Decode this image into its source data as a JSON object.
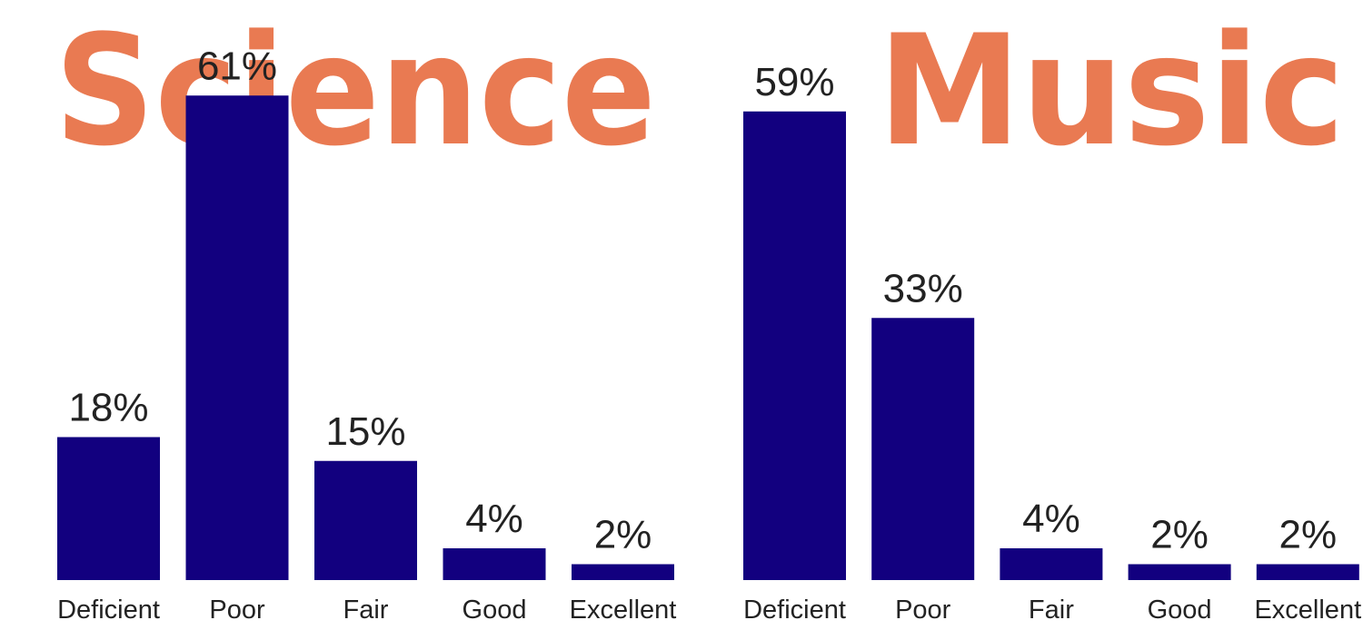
{
  "colors": {
    "bar": "#12007f",
    "title": "#e97a52",
    "text": "#222222",
    "background": "#ffffff"
  },
  "chart_data": [
    {
      "type": "bar",
      "title": "Science",
      "categories": [
        "Deficient",
        "Poor",
        "Fair",
        "Good",
        "Excellent"
      ],
      "values": [
        18,
        61,
        15,
        4,
        2
      ],
      "value_labels": [
        "18%",
        "61%",
        "15%",
        "4%",
        "2%"
      ],
      "ylim": [
        0,
        100
      ],
      "grid": false,
      "legend": "none"
    },
    {
      "type": "bar",
      "title": "Music",
      "categories": [
        "Deficient",
        "Poor",
        "Fair",
        "Good",
        "Excellent"
      ],
      "values": [
        59,
        33,
        4,
        2,
        2
      ],
      "value_labels": [
        "59%",
        "33%",
        "4%",
        "2%",
        "2%"
      ],
      "ylim": [
        0,
        100
      ],
      "grid": false,
      "legend": "none"
    }
  ]
}
